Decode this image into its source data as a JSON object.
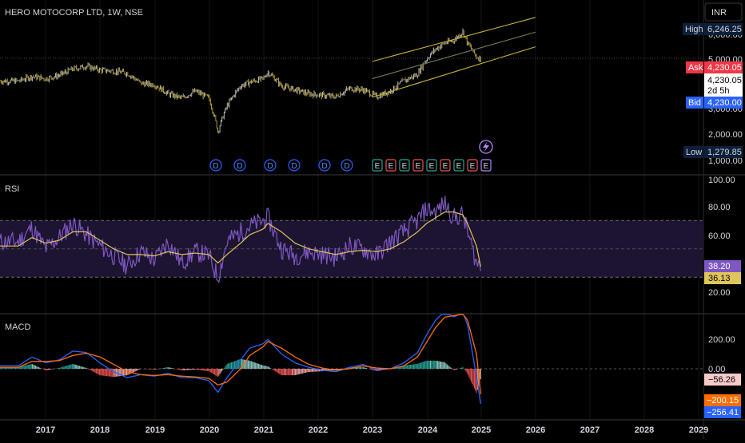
{
  "header": {
    "title": "HERO MOTOCORP LTD, 1W, NSE",
    "currency": "INR"
  },
  "colors": {
    "bg": "#000000",
    "grid": "#1a1a1a",
    "candle": "#c8c8c8",
    "channel": "#c9b037",
    "channel_mid": "#7a7a5a",
    "rsi_line": "#7e57c2",
    "rsi_ma": "#e0c45c",
    "macd_line": "#2962ff",
    "signal_line": "#ff6d00",
    "hist_pos": "#26a69a",
    "hist_neg": "#ef5350",
    "ask": "#f23645",
    "bid": "#2962ff",
    "label_bg": "#0d1f3a"
  },
  "price_panel": {
    "labels": {
      "high_tag": "High",
      "high_value": "6,246.25",
      "ask_tag": "Ask",
      "ask_value": "4,230.05",
      "last_value": "4,230.05",
      "countdown": "2d 5h",
      "bid_tag": "Bid",
      "bid_value": "4,230.00",
      "low_tag": "Low",
      "low_value": "1,279.85"
    },
    "axis_ticks": [
      "5,000.00",
      "2,000.00"
    ],
    "partial_ticks": [
      "6,000.00",
      "3,000.00",
      "1,000.00"
    ],
    "events": [
      "D",
      "D",
      "D",
      "D",
      "D",
      "D",
      "E",
      "E",
      "E",
      "E",
      "E",
      "E",
      "E",
      "E",
      "E"
    ],
    "lightning_icon": "lightning-icon"
  },
  "rsi_panel": {
    "title": "RSI",
    "axis_ticks": [
      "100.00",
      "80.00",
      "60.00",
      "20.00"
    ],
    "rsi_value": "38.20",
    "ma_value": "36.13"
  },
  "macd_panel": {
    "title": "MACD",
    "axis_ticks": [
      "200.00",
      "0.00"
    ],
    "hist_value": "−56.26",
    "signal_value": "−200.15",
    "macd_value": "−256.41"
  },
  "time_axis": {
    "years": [
      "2017",
      "2018",
      "2019",
      "2020",
      "2021",
      "2022",
      "2023",
      "2024",
      "2025",
      "2026",
      "2027",
      "2028",
      "2029"
    ]
  },
  "chart_data": {
    "type": "candlestick",
    "title": "HERO MOTOCORP LTD, 1W, NSE",
    "interval": "1W",
    "currency": "INR",
    "x_range": [
      "2016-06",
      "2029-01"
    ],
    "price_yscale": "log",
    "price_ylim": [
      1000,
      7000
    ],
    "price_series_monthly": [
      {
        "t": "2016-07",
        "c": 3100
      },
      {
        "t": "2016-10",
        "c": 3300
      },
      {
        "t": "2017-01",
        "c": 3200
      },
      {
        "t": "2017-04",
        "c": 3350
      },
      {
        "t": "2017-07",
        "c": 3650
      },
      {
        "t": "2017-10",
        "c": 3800
      },
      {
        "t": "2018-01",
        "c": 3600
      },
      {
        "t": "2018-04",
        "c": 3550
      },
      {
        "t": "2018-07",
        "c": 3450
      },
      {
        "t": "2018-10",
        "c": 3000
      },
      {
        "t": "2019-01",
        "c": 2950
      },
      {
        "t": "2019-04",
        "c": 2600
      },
      {
        "t": "2019-07",
        "c": 2450
      },
      {
        "t": "2019-10",
        "c": 2700
      },
      {
        "t": "2020-01",
        "c": 2450
      },
      {
        "t": "2020-03",
        "c": 1550
      },
      {
        "t": "2020-05",
        "c": 2200
      },
      {
        "t": "2020-08",
        "c": 2900
      },
      {
        "t": "2020-10",
        "c": 3050
      },
      {
        "t": "2021-01",
        "c": 3200
      },
      {
        "t": "2021-02",
        "c": 3500
      },
      {
        "t": "2021-05",
        "c": 2900
      },
      {
        "t": "2021-08",
        "c": 2750
      },
      {
        "t": "2021-11",
        "c": 2600
      },
      {
        "t": "2022-02",
        "c": 2550
      },
      {
        "t": "2022-05",
        "c": 2500
      },
      {
        "t": "2022-08",
        "c": 2800
      },
      {
        "t": "2022-11",
        "c": 2750
      },
      {
        "t": "2023-02",
        "c": 2500
      },
      {
        "t": "2023-05",
        "c": 2700
      },
      {
        "t": "2023-08",
        "c": 3100
      },
      {
        "t": "2023-11",
        "c": 3400
      },
      {
        "t": "2024-01",
        "c": 4200
      },
      {
        "t": "2024-03",
        "c": 4800
      },
      {
        "t": "2024-05",
        "c": 5200
      },
      {
        "t": "2024-07",
        "c": 5400
      },
      {
        "t": "2024-09",
        "c": 6100
      },
      {
        "t": "2024-10",
        "c": 5200
      },
      {
        "t": "2024-12",
        "c": 4300
      },
      {
        "t": "2025-01",
        "c": 4230
      }
    ],
    "channel_lines_price": [
      {
        "name": "upper",
        "from": {
          "t": "2023-01",
          "v": 4050
        },
        "to": {
          "t": "2026-01",
          "v": 7400
        }
      },
      {
        "name": "middle",
        "from": {
          "t": "2023-01",
          "v": 3200
        },
        "to": {
          "t": "2026-01",
          "v": 6050
        }
      },
      {
        "name": "lower",
        "from": {
          "t": "2023-01",
          "v": 2480
        },
        "to": {
          "t": "2026-01",
          "v": 4950
        }
      }
    ],
    "high": 6246.25,
    "low": 1279.85,
    "ask": 4230.05,
    "bid": 4230.0,
    "rsi": {
      "ylim": [
        10,
        100
      ],
      "band": [
        30,
        70
      ],
      "values_monthly": [
        55,
        65,
        50,
        58,
        68,
        60,
        52,
        45,
        38,
        48,
        42,
        55,
        40,
        48,
        45,
        30,
        55,
        62,
        66,
        70,
        72,
        50,
        45,
        48,
        46,
        44,
        52,
        50,
        45,
        55,
        62,
        70,
        78,
        76,
        82,
        72,
        74,
        62,
        40,
        38
      ],
      "ma_monthly": [
        52,
        58,
        54,
        56,
        62,
        62,
        56,
        50,
        46,
        46,
        45,
        48,
        46,
        47,
        46,
        40,
        46,
        54,
        60,
        64,
        68,
        62,
        54,
        50,
        48,
        46,
        48,
        49,
        48,
        50,
        55,
        62,
        68,
        72,
        76,
        76,
        74,
        68,
        52,
        36
      ],
      "last_rsi": 38.2,
      "last_ma": 36.13
    },
    "macd": {
      "ylim": [
        -300,
        380
      ],
      "macd_monthly": [
        20,
        80,
        40,
        60,
        120,
        110,
        40,
        -20,
        -60,
        -40,
        -50,
        -30,
        -60,
        -60,
        -80,
        -160,
        -60,
        60,
        140,
        170,
        200,
        100,
        40,
        10,
        -10,
        -20,
        10,
        30,
        -10,
        0,
        40,
        110,
        230,
        330,
        390,
        350,
        380,
        300,
        -50,
        -256
      ],
      "signal_monthly": [
        10,
        50,
        50,
        55,
        90,
        105,
        80,
        30,
        -20,
        -40,
        -45,
        -40,
        -50,
        -55,
        -65,
        -110,
        -90,
        0,
        90,
        150,
        185,
        140,
        80,
        30,
        5,
        -10,
        0,
        20,
        5,
        0,
        20,
        80,
        180,
        280,
        350,
        360,
        370,
        330,
        100,
        -200
      ],
      "last_hist": -56.26,
      "last_signal": -200.15,
      "last_macd": -256.41
    }
  }
}
